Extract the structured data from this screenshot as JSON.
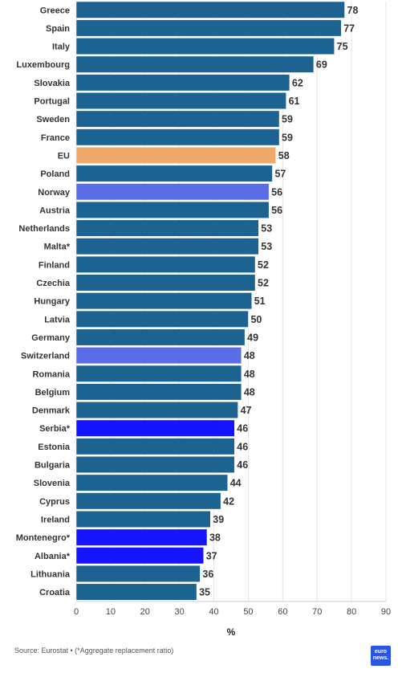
{
  "source": "Source: Eurostat • (*Aggregate replacement ratio)",
  "logo_text": "euronews.",
  "colors": {
    "default": "#1d6391",
    "eu": "#f0a96a",
    "norway_switzerland": "#5b6de6",
    "candidates": "#1414ff"
  },
  "chart_data": {
    "type": "bar",
    "orientation": "horizontal",
    "categories": [
      "Greece",
      "Spain",
      "Italy",
      "Luxembourg",
      "Slovakia",
      "Portugal",
      "Sweden",
      "France",
      "EU",
      "Poland",
      "Norway",
      "Austria",
      "Netherlands",
      "Malta*",
      "Finland",
      "Czechia",
      "Hungary",
      "Latvia",
      "Germany",
      "Switzerland",
      "Romania",
      "Belgium",
      "Denmark",
      "Serbia*",
      "Estonia",
      "Bulgaria",
      "Slovenia",
      "Cyprus",
      "Ireland",
      "Montenegro*",
      "Albania*",
      "Lithuania",
      "Croatia"
    ],
    "values": [
      78,
      77,
      75,
      69,
      62,
      61,
      59,
      59,
      58,
      57,
      56,
      56,
      53,
      53,
      52,
      52,
      51,
      50,
      49,
      48,
      48,
      48,
      47,
      46,
      46,
      46,
      44,
      42,
      39,
      38,
      37,
      36,
      35
    ],
    "bar_colors": [
      "#1d6391",
      "#1d6391",
      "#1d6391",
      "#1d6391",
      "#1d6391",
      "#1d6391",
      "#1d6391",
      "#1d6391",
      "#f0a96a",
      "#1d6391",
      "#5b6de6",
      "#1d6391",
      "#1d6391",
      "#1d6391",
      "#1d6391",
      "#1d6391",
      "#1d6391",
      "#1d6391",
      "#1d6391",
      "#5b6de6",
      "#1d6391",
      "#1d6391",
      "#1d6391",
      "#1414ff",
      "#1d6391",
      "#1d6391",
      "#1d6391",
      "#1d6391",
      "#1d6391",
      "#1414ff",
      "#1414ff",
      "#1d6391",
      "#1d6391"
    ],
    "xlabel": "%",
    "xlim": [
      0,
      90
    ],
    "xticks": [
      0,
      10,
      20,
      30,
      40,
      50,
      60,
      70,
      80,
      90
    ],
    "grid": true,
    "legend": false
  }
}
